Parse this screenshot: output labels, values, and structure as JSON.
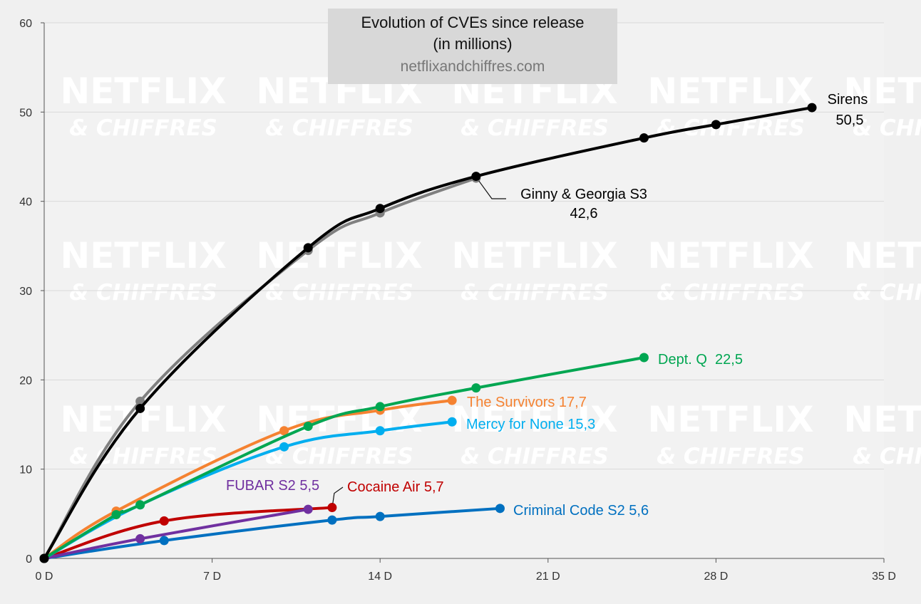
{
  "chart_data": {
    "type": "line",
    "title": "Evolution of CVEs since release",
    "subtitle": "(in millions)",
    "source": "netflixandchiffres.com",
    "watermark": {
      "line1": "NETFLIX",
      "line2": "& CHIFFRES"
    },
    "xlabel": "",
    "ylabel": "",
    "xlim": [
      0,
      35
    ],
    "ylim": [
      0,
      60
    ],
    "x_ticks": [
      0,
      7,
      14,
      21,
      28,
      35
    ],
    "x_tick_labels": [
      "0 D",
      "7 D",
      "14 D",
      "21 D",
      "28 D",
      "35 D"
    ],
    "y_ticks": [
      0,
      10,
      20,
      30,
      40,
      50,
      60
    ],
    "y_tick_labels": [
      "0",
      "10",
      "20",
      "30",
      "40",
      "50",
      "60"
    ],
    "grid": true,
    "series": [
      {
        "name": "Sirens",
        "value_label": "50,5",
        "color": "#000000",
        "x": [
          0,
          4,
          11,
          14,
          18,
          25,
          28,
          32
        ],
        "y": [
          0,
          16.8,
          34.8,
          39.2,
          42.8,
          47.1,
          48.6,
          50.5
        ]
      },
      {
        "name": "Ginny & Georgia S3",
        "value_label": "42,6",
        "color": "#808080",
        "x": [
          0,
          4,
          11,
          14,
          18
        ],
        "y": [
          0,
          17.6,
          34.5,
          38.7,
          42.6
        ]
      },
      {
        "name": "Dept. Q",
        "value_label": "22,5",
        "color": "#00a651",
        "x": [
          0,
          3,
          4,
          11,
          14,
          18,
          25
        ],
        "y": [
          0,
          4.9,
          6.0,
          14.8,
          17.0,
          19.1,
          22.5
        ]
      },
      {
        "name": "The Survivors",
        "value_label": "17,7",
        "color": "#f58231",
        "x": [
          0,
          3,
          10,
          14,
          17
        ],
        "y": [
          0,
          5.3,
          14.3,
          16.6,
          17.7
        ]
      },
      {
        "name": "Mercy for None",
        "value_label": "15,3",
        "color": "#00aeef",
        "x": [
          0,
          4,
          10,
          14,
          17
        ],
        "y": [
          0,
          6.0,
          12.5,
          14.3,
          15.3
        ]
      },
      {
        "name": "FUBAR S2",
        "value_label": "5,5",
        "color": "#7030a0",
        "x": [
          0,
          4,
          11
        ],
        "y": [
          0,
          2.2,
          5.5
        ]
      },
      {
        "name": "Cocaine Air",
        "value_label": "5,7",
        "color": "#c00000",
        "x": [
          0,
          5,
          12
        ],
        "y": [
          0,
          4.2,
          5.7
        ]
      },
      {
        "name": "Criminal Code S2",
        "value_label": "5,6",
        "color": "#0070c0",
        "x": [
          0,
          5,
          12,
          14,
          19
        ],
        "y": [
          0,
          2.0,
          4.3,
          4.7,
          5.6
        ]
      }
    ]
  }
}
